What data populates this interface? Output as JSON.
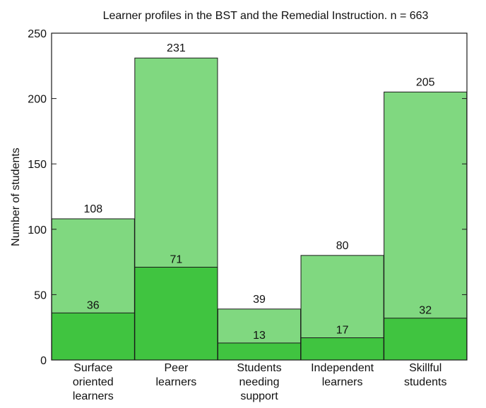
{
  "chart_data": {
    "type": "bar",
    "stacked": true,
    "title": "Learner profiles in the BST and the Remedial Instruction. n = 663",
    "xlabel": "",
    "ylabel": "Number of students",
    "ylim": [
      0,
      250
    ],
    "yticks": [
      0,
      50,
      100,
      150,
      200,
      250
    ],
    "grid": false,
    "legend": "none",
    "categories": [
      [
        "Surface",
        "oriented",
        "learners"
      ],
      [
        "Peer",
        "learners"
      ],
      [
        "Students",
        "needing",
        "support"
      ],
      [
        "Independent",
        "learners"
      ],
      [
        "Skillful",
        "students"
      ]
    ],
    "totals": [
      108,
      231,
      39,
      80,
      205
    ],
    "inner_values": [
      36,
      71,
      13,
      17,
      32
    ],
    "colors": {
      "total": "#80d880",
      "inner": "#40c440",
      "stroke": "#1a1a1a"
    }
  }
}
